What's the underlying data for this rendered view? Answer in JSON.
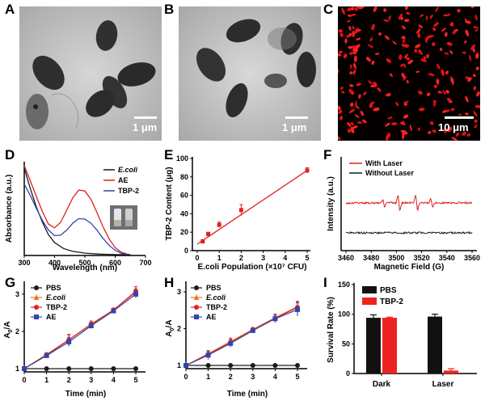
{
  "panels": {
    "A": {
      "letter": "A",
      "scale_label": "1 μm"
    },
    "B": {
      "letter": "B",
      "scale_label": "1 μm"
    },
    "C": {
      "letter": "C",
      "scale_label": "10 μm"
    },
    "D": {
      "letter": "D"
    },
    "E": {
      "letter": "E"
    },
    "F": {
      "letter": "F"
    },
    "G": {
      "letter": "G"
    },
    "H": {
      "letter": "H"
    },
    "I": {
      "letter": "I"
    }
  },
  "colors": {
    "black": "#1a1a1a",
    "red": "#e02020",
    "blue": "#3344aa",
    "orange": "#f07020"
  },
  "chart_data": [
    {
      "id": "D",
      "type": "line",
      "xlabel": "Wavelength (nm)",
      "ylabel": "Absorbance (a.u.)",
      "xlim": [
        300,
        700
      ],
      "xticks": [
        300,
        400,
        500,
        600,
        700
      ],
      "legend": [
        "E.coli",
        "AE",
        "TBP-2"
      ],
      "series": [
        {
          "name": "E.coli",
          "color": "#1a1a1a",
          "x": [
            300,
            320,
            340,
            360,
            380,
            400,
            430,
            460,
            500,
            550,
            600,
            650
          ],
          "y": [
            1.9,
            1.45,
            1.05,
            0.72,
            0.45,
            0.28,
            0.15,
            0.09,
            0.05,
            0.03,
            0.02,
            0.02
          ]
        },
        {
          "name": "AE",
          "color": "#e02020",
          "x": [
            300,
            320,
            340,
            360,
            380,
            400,
            420,
            440,
            460,
            480,
            500,
            520,
            540,
            560,
            580,
            600,
            620,
            640
          ],
          "y": [
            1.95,
            1.62,
            1.28,
            0.95,
            0.68,
            0.6,
            0.72,
            0.98,
            1.25,
            1.42,
            1.4,
            1.22,
            0.93,
            0.62,
            0.36,
            0.17,
            0.07,
            0.03
          ]
        },
        {
          "name": "TBP-2",
          "color": "#3344aa",
          "x": [
            300,
            320,
            340,
            360,
            380,
            400,
            420,
            440,
            460,
            480,
            500,
            520,
            540,
            560,
            580,
            600,
            620,
            640
          ],
          "y": [
            1.55,
            1.3,
            1.02,
            0.76,
            0.55,
            0.43,
            0.44,
            0.55,
            0.7,
            0.8,
            0.79,
            0.7,
            0.55,
            0.37,
            0.22,
            0.11,
            0.05,
            0.02
          ]
        }
      ]
    },
    {
      "id": "E",
      "type": "scatter",
      "xlabel": "E.coli Population (×10⁷ CFU)",
      "ylabel": "TBP-2 Content (μg)",
      "xlim": [
        0,
        5
      ],
      "ylim": [
        0,
        100
      ],
      "xticks": [
        0,
        1,
        2,
        3,
        4,
        5
      ],
      "yticks": [
        0,
        20,
        40,
        60,
        80,
        100
      ],
      "x": [
        0.25,
        0.5,
        1,
        2,
        5
      ],
      "y": [
        10,
        18,
        28,
        44,
        87
      ],
      "err": [
        2,
        2,
        3,
        6,
        3
      ],
      "fit": [
        [
          0,
          7
        ],
        [
          5,
          87
        ]
      ]
    },
    {
      "id": "F",
      "type": "line",
      "xlabel": "Magnetic Field (G)",
      "ylabel": "Intensity (a.u.)",
      "xlim": [
        3460,
        3560
      ],
      "xticks": [
        3460,
        3480,
        3500,
        3520,
        3540,
        3560
      ],
      "legend": [
        "With Laser",
        "Without Laser"
      ]
    },
    {
      "id": "G",
      "type": "line",
      "xlabel": "Time (min)",
      "ylabel_main": "A",
      "ylabel_sub": "0",
      "ylabel_tail": "/A",
      "xlim": [
        0,
        5
      ],
      "ylim": [
        1,
        3.3
      ],
      "xticks": [
        0,
        1,
        2,
        3,
        4,
        5
      ],
      "yticks": [
        1,
        2,
        3
      ],
      "legend": [
        "PBS",
        "E.coli",
        "TBP-2",
        "AE"
      ],
      "x": [
        0,
        1,
        2,
        3,
        4,
        5
      ],
      "series": [
        {
          "name": "PBS",
          "color": "#1a1a1a",
          "values": [
            1,
            1,
            1,
            1,
            1,
            1
          ],
          "err": [
            0,
            0,
            0,
            0,
            0,
            0
          ]
        },
        {
          "name": "E.coli",
          "color": "#f07020",
          "values": [
            1,
            1.38,
            1.78,
            2.18,
            2.58,
            3.05
          ],
          "err": [
            0,
            0.05,
            0.12,
            0.07,
            0.05,
            0.1
          ]
        },
        {
          "name": "TBP-2",
          "color": "#e02020",
          "values": [
            1,
            1.37,
            1.77,
            2.2,
            2.57,
            3.08
          ],
          "err": [
            0,
            0.05,
            0.15,
            0.08,
            0.05,
            0.12
          ]
        },
        {
          "name": "AE",
          "color": "#3344aa",
          "values": [
            1,
            1.35,
            1.72,
            2.15,
            2.55,
            3.0
          ],
          "err": [
            0,
            0.05,
            0.12,
            0.07,
            0.05,
            0.1
          ]
        }
      ]
    },
    {
      "id": "H",
      "type": "line",
      "xlabel": "Time (min)",
      "ylabel_main": "A",
      "ylabel_sub": "0",
      "ylabel_tail": "/A",
      "xlim": [
        0,
        5
      ],
      "ylim": [
        1,
        3.2
      ],
      "xticks": [
        0,
        1,
        2,
        3,
        4,
        5
      ],
      "yticks": [
        1,
        2,
        3
      ],
      "legend": [
        "PBS",
        "E.coli",
        "TBP-2",
        "AE"
      ],
      "x": [
        0,
        1,
        2,
        3,
        4,
        5
      ],
      "series": [
        {
          "name": "PBS",
          "color": "#1a1a1a",
          "values": [
            1,
            1,
            1,
            1,
            1,
            1
          ],
          "err": [
            0,
            0,
            0,
            0,
            0,
            0
          ]
        },
        {
          "name": "E.coli",
          "color": "#f07020",
          "values": [
            1,
            1.32,
            1.65,
            1.98,
            2.3,
            2.6
          ],
          "err": [
            0,
            0.08,
            0.1,
            0.06,
            0.1,
            0.15
          ]
        },
        {
          "name": "TBP-2",
          "color": "#e02020",
          "values": [
            1,
            1.3,
            1.62,
            1.96,
            2.28,
            2.58
          ],
          "err": [
            0,
            0.08,
            0.1,
            0.06,
            0.1,
            0.15
          ]
        },
        {
          "name": "AE",
          "color": "#3344aa",
          "values": [
            1,
            1.28,
            1.6,
            1.95,
            2.27,
            2.52
          ],
          "err": [
            0,
            0.12,
            0.1,
            0.06,
            0.1,
            0.18
          ]
        }
      ]
    },
    {
      "id": "I",
      "type": "bar",
      "xlabel": "",
      "ylabel": "Survival Rate (%)",
      "ylim": [
        0,
        150
      ],
      "yticks": [
        0,
        50,
        100,
        150
      ],
      "categories": [
        "Dark",
        "Laser"
      ],
      "legend": [
        "PBS",
        "TBP-2"
      ],
      "series": [
        {
          "name": "PBS",
          "color": "#111111",
          "values": [
            94,
            96
          ],
          "err": [
            5,
            4
          ]
        },
        {
          "name": "TBP-2",
          "color": "#ee2222",
          "values": [
            94,
            5
          ],
          "err": [
            1,
            3
          ]
        }
      ]
    }
  ]
}
